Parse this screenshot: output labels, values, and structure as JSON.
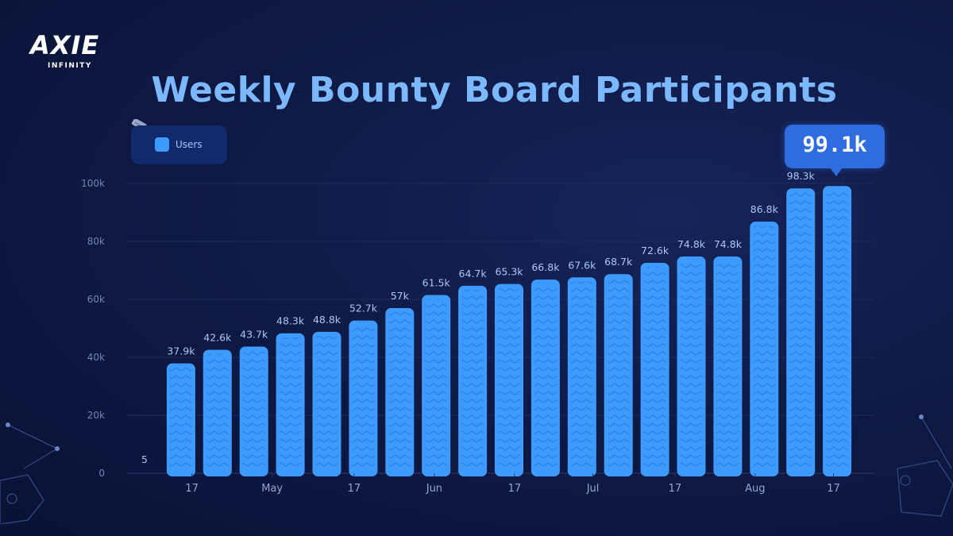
{
  "logo": {
    "word": "AXIE",
    "sub": "INFINITY"
  },
  "legend": {
    "label": "Users"
  },
  "highlight": {
    "label": "99.1k"
  },
  "chart_data": {
    "type": "bar",
    "title": "Weekly Bounty Board Participants",
    "xlabel": "",
    "ylabel": "",
    "ylim": [
      0,
      100000
    ],
    "yticks": [
      0,
      20000,
      40000,
      60000,
      80000,
      100000
    ],
    "ytick_labels": [
      "0",
      "20k",
      "40k",
      "60k",
      "80k",
      "100k"
    ],
    "grid": true,
    "legend_position": "top-left",
    "series": [
      {
        "name": "Users",
        "color": "#3d9bff",
        "values": [
          5,
          37900,
          42600,
          43700,
          48300,
          48800,
          52700,
          57000,
          61500,
          64700,
          65300,
          66800,
          67600,
          68700,
          72600,
          74800,
          74800,
          86800,
          98300,
          99100
        ],
        "labels": [
          "5",
          "37.9k",
          "42.6k",
          "43.7k",
          "48.3k",
          "48.8k",
          "52.7k",
          "57k",
          "61.5k",
          "64.7k",
          "65.3k",
          "66.8k",
          "67.6k",
          "68.7k",
          "72.6k",
          "74.8k",
          "74.8k",
          "86.8k",
          "98.3k",
          ""
        ]
      }
    ],
    "x_tick_labels": [
      {
        "index": 1.3,
        "label": "17"
      },
      {
        "index": 3.5,
        "label": "May"
      },
      {
        "index": 5.75,
        "label": "17"
      },
      {
        "index": 7.95,
        "label": "Jun"
      },
      {
        "index": 10.15,
        "label": "17"
      },
      {
        "index": 12.3,
        "label": "Jul"
      },
      {
        "index": 14.55,
        "label": "17"
      },
      {
        "index": 16.75,
        "label": "Aug"
      },
      {
        "index": 18.9,
        "label": "17"
      }
    ]
  }
}
